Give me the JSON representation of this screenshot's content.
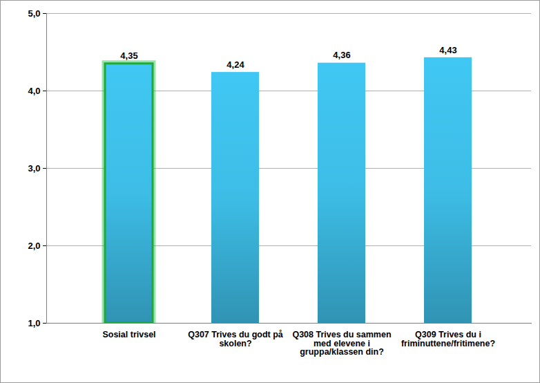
{
  "chart_data": {
    "type": "bar",
    "categories": [
      "Sosial trivsel",
      "Q307 Trives du godt på skolen?",
      "Q308 Trives du sammen med elevene i gruppa/klassen din?",
      "Q309 Trives du i friminuttene/fritimene?"
    ],
    "values": [
      4.35,
      4.24,
      4.36,
      4.43
    ],
    "value_labels": [
      "4,35",
      "4,24",
      "4,36",
      "4,43"
    ],
    "color": "#3dbde6",
    "ylim": [
      1,
      5
    ],
    "yticks": [
      {
        "value": 1,
        "label": "1,0"
      },
      {
        "value": 2,
        "label": "2,0"
      },
      {
        "value": 3,
        "label": "3,0"
      },
      {
        "value": 4,
        "label": "4,0"
      },
      {
        "value": 5,
        "label": "5,0"
      }
    ],
    "grid": true,
    "data_labels": true
  }
}
